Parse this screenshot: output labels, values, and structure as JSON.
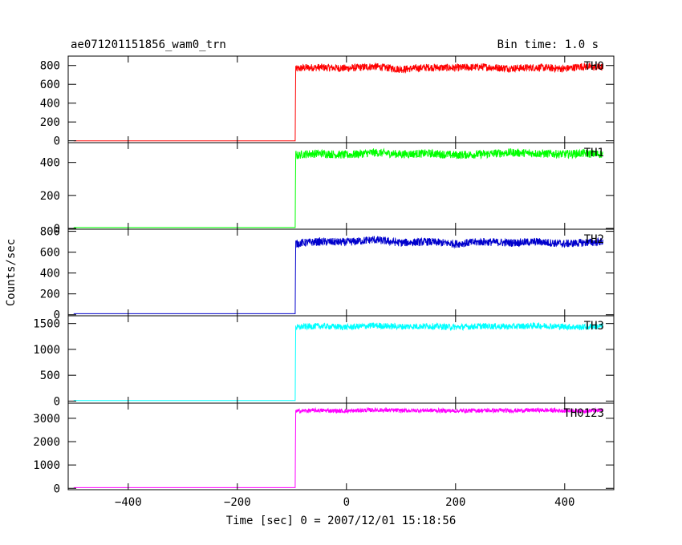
{
  "chart_data": {
    "type": "line",
    "title": "ae071201151856_wam0_trn",
    "subtitle": "Bin time: 1.0 s",
    "xlabel": "Time [sec] 0 = 2007/12/01 15:18:56",
    "ylabel": "Counts/sec",
    "xlim": [
      -510,
      490
    ],
    "x_ticks": [
      -400,
      -200,
      0,
      200,
      400
    ],
    "data_x_range": [
      -500,
      470
    ],
    "trigger_time": -93,
    "panels": [
      {
        "name": "TH0",
        "color": "#ff0000",
        "ylim": [
          -20,
          900
        ],
        "yticks": [
          0,
          200,
          400,
          600,
          800
        ],
        "x": [
          -500,
          -94,
          -93,
          -92,
          -80,
          -50,
          0,
          50,
          100,
          150,
          200,
          250,
          300,
          350,
          400,
          430,
          470
        ],
        "values": [
          0,
          0,
          790,
          760,
          775,
          780,
          770,
          790,
          760,
          780,
          775,
          785,
          770,
          780,
          765,
          790,
          780
        ]
      },
      {
        "name": "TH1",
        "color": "#00ff00",
        "ylim": [
          -5,
          520
        ],
        "yticks": [
          0,
          200,
          400
        ],
        "x": [
          -500,
          -94,
          -93,
          -92,
          -80,
          -50,
          0,
          50,
          100,
          150,
          200,
          250,
          300,
          350,
          400,
          430,
          470
        ],
        "values": [
          5,
          5,
          460,
          440,
          450,
          455,
          445,
          460,
          450,
          455,
          445,
          450,
          460,
          455,
          450,
          455,
          450
        ]
      },
      {
        "name": "TH2",
        "color": "#0000cc",
        "ylim": [
          -10,
          820
        ],
        "yticks": [
          0,
          200,
          400,
          600,
          800
        ],
        "x": [
          -500,
          -94,
          -93,
          -92,
          -80,
          -50,
          0,
          50,
          100,
          150,
          200,
          250,
          300,
          350,
          400,
          430,
          470
        ],
        "values": [
          10,
          10,
          700,
          680,
          690,
          700,
          695,
          720,
          690,
          700,
          680,
          700,
          690,
          700,
          680,
          690,
          700
        ]
      },
      {
        "name": "TH3",
        "color": "#00ffff",
        "ylim": [
          -40,
          1650
        ],
        "yticks": [
          0,
          500,
          1000,
          1500
        ],
        "x": [
          -500,
          -94,
          -93,
          -92,
          -80,
          -50,
          0,
          50,
          100,
          150,
          200,
          250,
          300,
          350,
          400,
          430,
          470
        ],
        "values": [
          10,
          10,
          1460,
          1420,
          1440,
          1450,
          1430,
          1460,
          1440,
          1450,
          1430,
          1450,
          1440,
          1460,
          1440,
          1430,
          1450
        ]
      },
      {
        "name": "TH0123",
        "color": "#ff00ff",
        "ylim": [
          -60,
          3650
        ],
        "yticks": [
          0,
          1000,
          2000,
          3000
        ],
        "x": [
          -500,
          -94,
          -93,
          -92,
          -80,
          -50,
          0,
          50,
          100,
          150,
          200,
          250,
          300,
          350,
          400,
          430,
          470
        ],
        "values": [
          30,
          30,
          3350,
          3300,
          3320,
          3340,
          3310,
          3360,
          3330,
          3340,
          3320,
          3340,
          3330,
          3350,
          3330,
          3320,
          3340
        ]
      }
    ],
    "noise": [
      40,
      25,
      38,
      60,
      90
    ],
    "grid": false,
    "legend": "none"
  }
}
